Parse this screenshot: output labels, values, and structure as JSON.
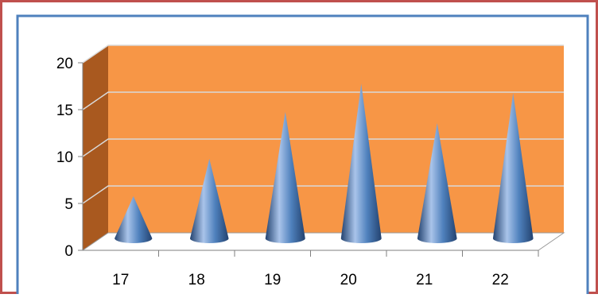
{
  "chart_data": {
    "type": "bar",
    "style": "3d-cone",
    "categories": [
      "17",
      "18",
      "19",
      "20",
      "21",
      "22"
    ],
    "values": [
      4.5,
      8.5,
      13.5,
      16.5,
      12.3,
      15.5
    ],
    "yticks": [
      "0",
      "5",
      "10",
      "15",
      "20"
    ],
    "ylim": [
      0,
      20
    ],
    "grid": true,
    "legend": "none",
    "title": "",
    "xlabel": "",
    "ylabel": ""
  },
  "colors": {
    "outer_border": "#c0504d",
    "inner_border": "#4f81bd",
    "plot_back_wall": "#f79646",
    "plot_side_wall": "#a9591f",
    "gridline": "#d9d9d9",
    "cone_light": "#a9c4ea",
    "cone_mid": "#4f81bd",
    "cone_dark": "#23426f",
    "axis_text": "#000000"
  }
}
